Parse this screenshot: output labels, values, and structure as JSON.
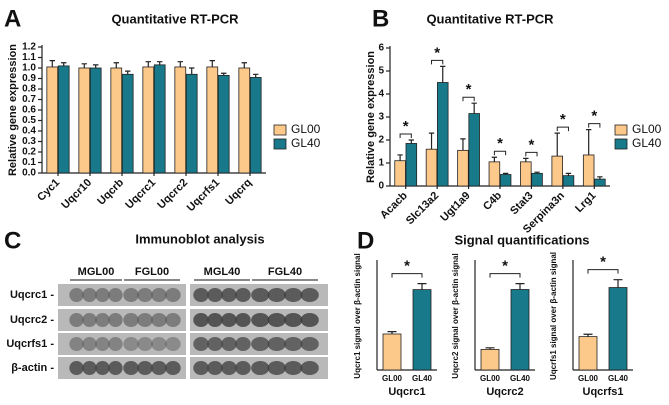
{
  "panel_labels": [
    "A",
    "B",
    "C",
    "D"
  ],
  "chart_data": [
    {
      "type": "bar",
      "title": "Quantitative RT-PCR",
      "ylabel": "Relative gene expression",
      "categories": [
        "Cyc1",
        "Uqcr10",
        "Uqcrb",
        "Uqcrc1",
        "Uqcrc2",
        "Uqcrfs1",
        "Uqcrq"
      ],
      "series": [
        {
          "name": "GL00",
          "color": "#fcc98b",
          "values": [
            1.01,
            1.0,
            1.0,
            1.01,
            1.01,
            1.01,
            1.0
          ],
          "errors": [
            0.06,
            0.04,
            0.05,
            0.05,
            0.05,
            0.06,
            0.05
          ]
        },
        {
          "name": "GL40",
          "color": "#17798a",
          "values": [
            1.02,
            1.0,
            0.94,
            1.03,
            0.94,
            0.93,
            0.91
          ],
          "errors": [
            0.03,
            0.03,
            0.03,
            0.03,
            0.06,
            0.02,
            0.03
          ]
        }
      ],
      "ylim": [
        0,
        1.2
      ],
      "yticks": [
        {
          "value": 0,
          "label": "0.0"
        },
        0.1,
        0.2,
        0.3,
        0.4,
        0.5,
        0.6,
        0.7,
        0.8,
        0.9,
        {
          "value": 1,
          "label": "1.0"
        },
        1.1,
        1.2
      ],
      "legend": "right"
    },
    {
      "type": "bar",
      "title": "Quantitative RT-PCR",
      "ylabel": "Relative gene expression",
      "categories": [
        "Acacb",
        "Slc13a2",
        "Ugt1a9",
        "C4b",
        "Stat3",
        "Serpina3n",
        "Lrg1"
      ],
      "series": [
        {
          "name": "GL00",
          "color": "#fcc98b",
          "values": [
            1.1,
            1.6,
            1.55,
            1.05,
            1.05,
            1.3,
            1.35
          ],
          "errors": [
            0.25,
            0.7,
            0.5,
            0.2,
            0.15,
            1.0,
            1.1
          ]
        },
        {
          "name": "GL40",
          "color": "#17798a",
          "values": [
            1.85,
            4.5,
            3.15,
            0.5,
            0.55,
            0.45,
            0.3
          ],
          "errors": [
            0.15,
            0.7,
            0.45,
            0.05,
            0.05,
            0.1,
            0.1
          ]
        }
      ],
      "significance": [
        "*",
        "*",
        "*",
        "*",
        "*",
        "*",
        "*"
      ],
      "ylim": [
        0,
        6
      ],
      "yticks": [
        0,
        1,
        2,
        3,
        4,
        5,
        6
      ],
      "legend": "right"
    },
    {
      "type": "bar",
      "ylabel": "Uqcrc1 signal over β-actin signal",
      "xlabel": "Uqcrc1",
      "categories": [
        "GL00",
        "GL40"
      ],
      "values": [
        1.5,
        3.35
      ],
      "errors": [
        0.1,
        0.25
      ],
      "colors": [
        "#fcc98b",
        "#17798a"
      ],
      "significance": "*",
      "ylim": [
        0,
        4.5
      ]
    },
    {
      "type": "bar",
      "ylabel": "Uqcrc2 signal over β-actin signal",
      "xlabel": "Uqcrc2",
      "categories": [
        "GL00",
        "GL40"
      ],
      "values": [
        1.05,
        4.1
      ],
      "errors": [
        0.08,
        0.3
      ],
      "colors": [
        "#fcc98b",
        "#17798a"
      ],
      "significance": "*",
      "ylim": [
        0,
        5.5
      ]
    },
    {
      "type": "bar",
      "ylabel": "Uqcrfs1 signal over β-actin signal",
      "xlabel": "Uqcrfs1",
      "categories": [
        "GL00",
        "GL40"
      ],
      "values": [
        1.7,
        4.2
      ],
      "errors": [
        0.12,
        0.4
      ],
      "colors": [
        "#fcc98b",
        "#17798a"
      ],
      "significance": "*",
      "ylim": [
        0,
        5.5
      ]
    }
  ],
  "immunoblot": {
    "title": "Immunoblot analysis",
    "lanes": [
      "MGL00",
      "FGL00",
      "MGL40",
      "FGL40"
    ],
    "rows": [
      "Uqcrc1 -",
      "Uqcrc2 -",
      "Uqcrfs1 -",
      "β-actin -"
    ]
  },
  "signal_title": "Signal quantifications"
}
